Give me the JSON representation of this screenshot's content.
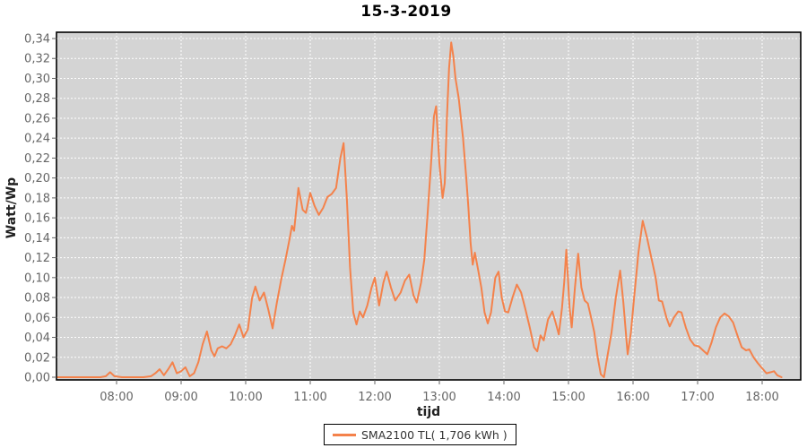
{
  "title": "15-3-2019",
  "legend": {
    "label": "SMA2100 TL( 1,706 kWh )"
  },
  "colors": {
    "line": "#f4824b",
    "plot_bg": "#d4d4d4",
    "grid": "#ffffff",
    "tick_label": "#666666",
    "axis_label": "#222222",
    "border": "#000000"
  },
  "chart_data": {
    "type": "line",
    "title": "15-3-2019",
    "xlabel": "tijd",
    "ylabel": "Watt/Wp",
    "ylim": [
      0,
      0.34
    ],
    "ytick_step": 0.02,
    "decimal_separator": ",",
    "xticks": [
      "08:00",
      "09:00",
      "10:00",
      "11:00",
      "12:00",
      "13:00",
      "14:00",
      "15:00",
      "16:00",
      "17:00",
      "18:00"
    ],
    "x_range": [
      "07:04",
      "18:36"
    ],
    "grid": "white dashed on gray background",
    "legend_position": "bottom-center",
    "series": [
      {
        "name": "SMA2100 TL( 1,706 kWh )",
        "color": "#f4824b",
        "points": [
          [
            "07:05",
            0
          ],
          [
            "07:15",
            0
          ],
          [
            "07:25",
            0
          ],
          [
            "07:35",
            0
          ],
          [
            "07:45",
            0
          ],
          [
            "07:50",
            0.001
          ],
          [
            "07:54",
            0.005
          ],
          [
            "07:58",
            0.001
          ],
          [
            "08:05",
            0
          ],
          [
            "08:15",
            0
          ],
          [
            "08:25",
            0
          ],
          [
            "08:32",
            0.001
          ],
          [
            "08:36",
            0.004
          ],
          [
            "08:40",
            0.008
          ],
          [
            "08:44",
            0.002
          ],
          [
            "08:48",
            0.008
          ],
          [
            "08:52",
            0.015
          ],
          [
            "08:56",
            0.004
          ],
          [
            "09:00",
            0.006
          ],
          [
            "09:04",
            0.01
          ],
          [
            "09:08",
            0.001
          ],
          [
            "09:12",
            0.004
          ],
          [
            "09:16",
            0.015
          ],
          [
            "09:20",
            0.033
          ],
          [
            "09:24",
            0.046
          ],
          [
            "09:28",
            0.027
          ],
          [
            "09:31",
            0.021
          ],
          [
            "09:34",
            0.029
          ],
          [
            "09:38",
            0.031
          ],
          [
            "09:42",
            0.029
          ],
          [
            "09:46",
            0.033
          ],
          [
            "09:50",
            0.042
          ],
          [
            "09:54",
            0.053
          ],
          [
            "09:58",
            0.04
          ],
          [
            "10:02",
            0.048
          ],
          [
            "10:06",
            0.08
          ],
          [
            "10:09",
            0.091
          ],
          [
            "10:13",
            0.077
          ],
          [
            "10:17",
            0.085
          ],
          [
            "10:21",
            0.068
          ],
          [
            "10:25",
            0.049
          ],
          [
            "10:29",
            0.075
          ],
          [
            "10:33",
            0.098
          ],
          [
            "10:37",
            0.118
          ],
          [
            "10:41",
            0.14
          ],
          [
            "10:43",
            0.152
          ],
          [
            "10:45",
            0.147
          ],
          [
            "10:49",
            0.19
          ],
          [
            "10:53",
            0.168
          ],
          [
            "10:56",
            0.165
          ],
          [
            "11:00",
            0.185
          ],
          [
            "11:04",
            0.172
          ],
          [
            "11:08",
            0.163
          ],
          [
            "11:12",
            0.17
          ],
          [
            "11:16",
            0.181
          ],
          [
            "11:20",
            0.184
          ],
          [
            "11:24",
            0.19
          ],
          [
            "11:28",
            0.22
          ],
          [
            "11:31",
            0.235
          ],
          [
            "11:34",
            0.18
          ],
          [
            "11:37",
            0.11
          ],
          [
            "11:40",
            0.065
          ],
          [
            "11:43",
            0.053
          ],
          [
            "11:46",
            0.066
          ],
          [
            "11:49",
            0.06
          ],
          [
            "11:53",
            0.072
          ],
          [
            "11:57",
            0.09
          ],
          [
            "12:00",
            0.1
          ],
          [
            "12:04",
            0.072
          ],
          [
            "12:08",
            0.095
          ],
          [
            "12:11",
            0.106
          ],
          [
            "12:15",
            0.09
          ],
          [
            "12:19",
            0.077
          ],
          [
            "12:24",
            0.085
          ],
          [
            "12:28",
            0.097
          ],
          [
            "12:32",
            0.103
          ],
          [
            "12:36",
            0.082
          ],
          [
            "12:39",
            0.075
          ],
          [
            "12:43",
            0.095
          ],
          [
            "12:46",
            0.118
          ],
          [
            "12:49",
            0.163
          ],
          [
            "12:52",
            0.21
          ],
          [
            "12:55",
            0.262
          ],
          [
            "12:57",
            0.272
          ],
          [
            "13:00",
            0.215
          ],
          [
            "13:03",
            0.18
          ],
          [
            "13:05",
            0.195
          ],
          [
            "13:07",
            0.26
          ],
          [
            "13:09",
            0.31
          ],
          [
            "13:11",
            0.336
          ],
          [
            "13:13",
            0.322
          ],
          [
            "13:15",
            0.3
          ],
          [
            "13:18",
            0.28
          ],
          [
            "13:20",
            0.26
          ],
          [
            "13:22",
            0.24
          ],
          [
            "13:25",
            0.2
          ],
          [
            "13:27",
            0.17
          ],
          [
            "13:29",
            0.135
          ],
          [
            "13:31",
            0.113
          ],
          [
            "13:33",
            0.125
          ],
          [
            "13:36",
            0.108
          ],
          [
            "13:39",
            0.09
          ],
          [
            "13:42",
            0.065
          ],
          [
            "13:45",
            0.054
          ],
          [
            "13:48",
            0.065
          ],
          [
            "13:52",
            0.1
          ],
          [
            "13:55",
            0.106
          ],
          [
            "13:58",
            0.08
          ],
          [
            "14:01",
            0.066
          ],
          [
            "14:04",
            0.065
          ],
          [
            "14:08",
            0.08
          ],
          [
            "14:12",
            0.093
          ],
          [
            "14:16",
            0.085
          ],
          [
            "14:20",
            0.068
          ],
          [
            "14:24",
            0.05
          ],
          [
            "14:28",
            0.03
          ],
          [
            "14:31",
            0.026
          ],
          [
            "14:34",
            0.042
          ],
          [
            "14:37",
            0.037
          ],
          [
            "14:41",
            0.058
          ],
          [
            "14:45",
            0.066
          ],
          [
            "14:48",
            0.055
          ],
          [
            "14:51",
            0.043
          ],
          [
            "14:54",
            0.07
          ],
          [
            "14:56",
            0.095
          ],
          [
            "14:58",
            0.128
          ],
          [
            "15:01",
            0.07
          ],
          [
            "15:03",
            0.05
          ],
          [
            "15:06",
            0.09
          ],
          [
            "15:09",
            0.124
          ],
          [
            "15:12",
            0.09
          ],
          [
            "15:15",
            0.077
          ],
          [
            "15:18",
            0.074
          ],
          [
            "15:21",
            0.06
          ],
          [
            "15:24",
            0.045
          ],
          [
            "15:27",
            0.021
          ],
          [
            "15:30",
            0.003
          ],
          [
            "15:33",
            0.0
          ],
          [
            "15:36",
            0.02
          ],
          [
            "15:40",
            0.045
          ],
          [
            "15:44",
            0.08
          ],
          [
            "15:48",
            0.107
          ],
          [
            "15:51",
            0.075
          ],
          [
            "15:55",
            0.023
          ],
          [
            "15:58",
            0.045
          ],
          [
            "16:01",
            0.08
          ],
          [
            "16:05",
            0.125
          ],
          [
            "16:09",
            0.157
          ],
          [
            "16:13",
            0.14
          ],
          [
            "16:17",
            0.12
          ],
          [
            "16:21",
            0.1
          ],
          [
            "16:24",
            0.077
          ],
          [
            "16:27",
            0.076
          ],
          [
            "16:31",
            0.06
          ],
          [
            "16:34",
            0.051
          ],
          [
            "16:38",
            0.06
          ],
          [
            "16:42",
            0.066
          ],
          [
            "16:45",
            0.065
          ],
          [
            "16:49",
            0.05
          ],
          [
            "16:53",
            0.038
          ],
          [
            "16:57",
            0.032
          ],
          [
            "17:01",
            0.031
          ],
          [
            "17:05",
            0.027
          ],
          [
            "17:09",
            0.023
          ],
          [
            "17:13",
            0.035
          ],
          [
            "17:17",
            0.05
          ],
          [
            "17:21",
            0.06
          ],
          [
            "17:25",
            0.064
          ],
          [
            "17:29",
            0.061
          ],
          [
            "17:33",
            0.055
          ],
          [
            "17:37",
            0.042
          ],
          [
            "17:41",
            0.03
          ],
          [
            "17:45",
            0.027
          ],
          [
            "17:48",
            0.028
          ],
          [
            "17:52",
            0.02
          ],
          [
            "17:56",
            0.014
          ],
          [
            "18:00",
            0.009
          ],
          [
            "18:04",
            0.004
          ],
          [
            "18:08",
            0.005
          ],
          [
            "18:11",
            0.006
          ],
          [
            "18:14",
            0.002
          ],
          [
            "18:18",
            0.0
          ]
        ]
      }
    ]
  }
}
